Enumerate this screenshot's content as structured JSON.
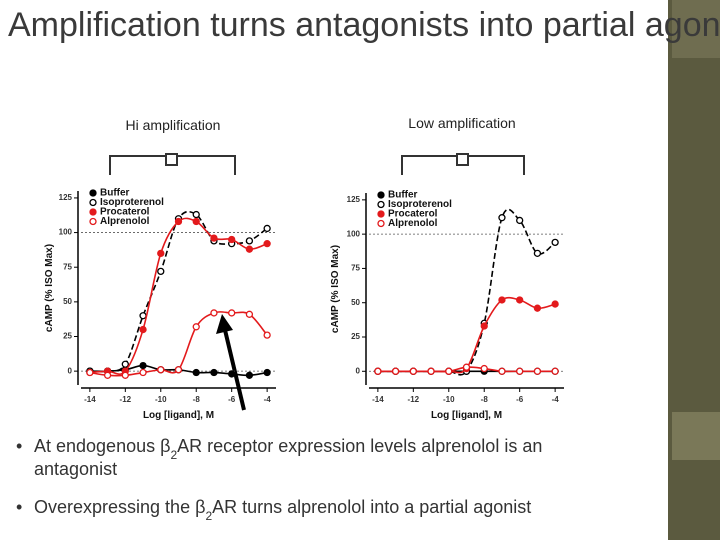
{
  "title": "Amplification turns antagonists into partial agonists:",
  "bullets": [
    [
      [
        "At endogenous β",
        "2",
        "AR receptor expression levels alprenolol is an"
      ],
      [
        "antagonist"
      ]
    ],
    [
      [
        "Overexpressing the β",
        "2",
        "AR turns alprenolol into a partial agonist"
      ]
    ]
  ],
  "chart_data": [
    {
      "type": "line",
      "annotation": "Hi amplification",
      "xlabel": "Log [ligand], M",
      "ylabel": "cAMP (% ISO Max)",
      "x": [
        -14,
        -13,
        -12,
        -11,
        -10,
        -9,
        -8,
        -7,
        -6,
        -5,
        -4
      ],
      "xlim": [
        -14.5,
        -3.5
      ],
      "xticks": [
        -14,
        -12,
        -10,
        -8,
        -6,
        -4
      ],
      "ylim": [
        -10,
        130
      ],
      "yticks": [
        0,
        25,
        50,
        75,
        100,
        125
      ],
      "reference_lines": [
        0,
        100
      ],
      "legend": "upper left",
      "series": [
        {
          "name": "Buffer",
          "color": "#000000",
          "marker": "filled",
          "linestyle": "solid",
          "values": [
            0,
            0,
            1,
            4,
            1,
            1,
            -1,
            -1,
            -2,
            -3,
            -1
          ]
        },
        {
          "name": "Isoproterenol",
          "color": "#000000",
          "marker": "open",
          "linestyle": "dashed",
          "values": [
            0,
            0,
            5,
            40,
            72,
            110,
            113,
            94,
            92,
            94,
            103
          ]
        },
        {
          "name": "Procaterol",
          "color": "#e31a1c",
          "marker": "filled",
          "linestyle": "solid",
          "values": [
            -1,
            0,
            0,
            30,
            85,
            108,
            108,
            96,
            95,
            88,
            92
          ]
        },
        {
          "name": "Alprenolol",
          "color": "#e31a1c",
          "marker": "open",
          "linestyle": "solid",
          "values": [
            -1,
            -3,
            -3,
            -1,
            1,
            1,
            32,
            42,
            42,
            41,
            26
          ]
        }
      ]
    },
    {
      "type": "line",
      "annotation": "Low amplification",
      "xlabel": "Log [ligand], M",
      "ylabel": "cAMP (% ISO Max)",
      "x": [
        -14,
        -13,
        -12,
        -11,
        -10,
        -9,
        -8,
        -7,
        -6,
        -5,
        -4
      ],
      "xlim": [
        -14.5,
        -3.5
      ],
      "xticks": [
        -14,
        -12,
        -10,
        -8,
        -6,
        -4
      ],
      "ylim": [
        -10,
        130
      ],
      "yticks": [
        0,
        25,
        50,
        75,
        100,
        125
      ],
      "reference_lines": [
        0,
        100
      ],
      "legend": "upper left",
      "series": [
        {
          "name": "Buffer",
          "color": "#000000",
          "marker": "filled",
          "linestyle": "solid",
          "values": [
            0,
            0,
            0,
            0,
            0,
            0,
            0,
            0,
            0,
            0,
            0
          ]
        },
        {
          "name": "Isoproterenol",
          "color": "#000000",
          "marker": "open",
          "linestyle": "dashed",
          "values": [
            0,
            0,
            0,
            0,
            0,
            0,
            35,
            112,
            110,
            86,
            94
          ]
        },
        {
          "name": "Procaterol",
          "color": "#e31a1c",
          "marker": "filled",
          "linestyle": "solid",
          "values": [
            0,
            0,
            0,
            0,
            0,
            2,
            33,
            52,
            52,
            46,
            49
          ]
        },
        {
          "name": "Alprenolol",
          "color": "#e31a1c",
          "marker": "open",
          "linestyle": "solid",
          "values": [
            0,
            0,
            0,
            0,
            0,
            3,
            2,
            0,
            0,
            0,
            0
          ]
        }
      ]
    }
  ]
}
